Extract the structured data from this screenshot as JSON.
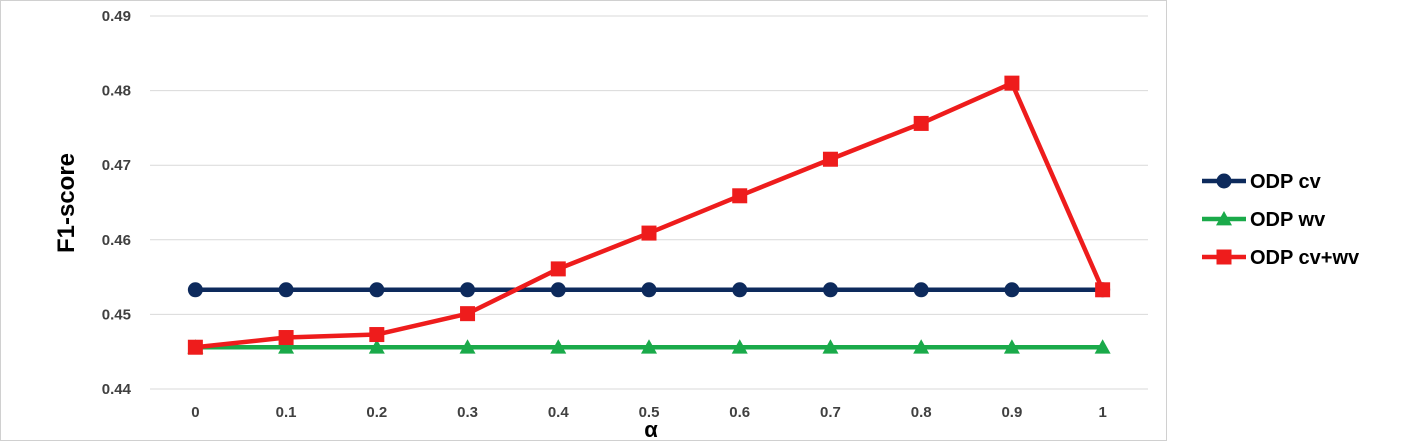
{
  "chart_data": {
    "type": "line",
    "title": "",
    "xlabel": "α",
    "ylabel": "F1-score",
    "categories": [
      "0",
      "0.1",
      "0.2",
      "0.3",
      "0.4",
      "0.5",
      "0.6",
      "0.7",
      "0.8",
      "0.9",
      "1"
    ],
    "ylim": [
      0.44,
      0.49
    ],
    "yticks": [
      "0.44",
      "0.45",
      "0.46",
      "0.47",
      "0.48",
      "0.49"
    ],
    "grid": true,
    "legend_position": "right",
    "series": [
      {
        "name": "ODP cv",
        "color": "#0d2a5c",
        "marker": "circle",
        "values": [
          0.4533,
          0.4533,
          0.4533,
          0.4533,
          0.4533,
          0.4533,
          0.4533,
          0.4533,
          0.4533,
          0.4533,
          0.4533
        ]
      },
      {
        "name": "ODP wv",
        "color": "#1aaa4a",
        "marker": "triangle",
        "values": [
          0.4456,
          0.4456,
          0.4456,
          0.4456,
          0.4456,
          0.4456,
          0.4456,
          0.4456,
          0.4456,
          0.4456,
          0.4456
        ]
      },
      {
        "name": "ODP cv+wv",
        "color": "#ee1c1c",
        "marker": "square",
        "values": [
          0.4456,
          0.4469,
          0.4473,
          0.4501,
          0.4561,
          0.4609,
          0.4659,
          0.4708,
          0.4756,
          0.481,
          0.4533
        ]
      }
    ]
  }
}
